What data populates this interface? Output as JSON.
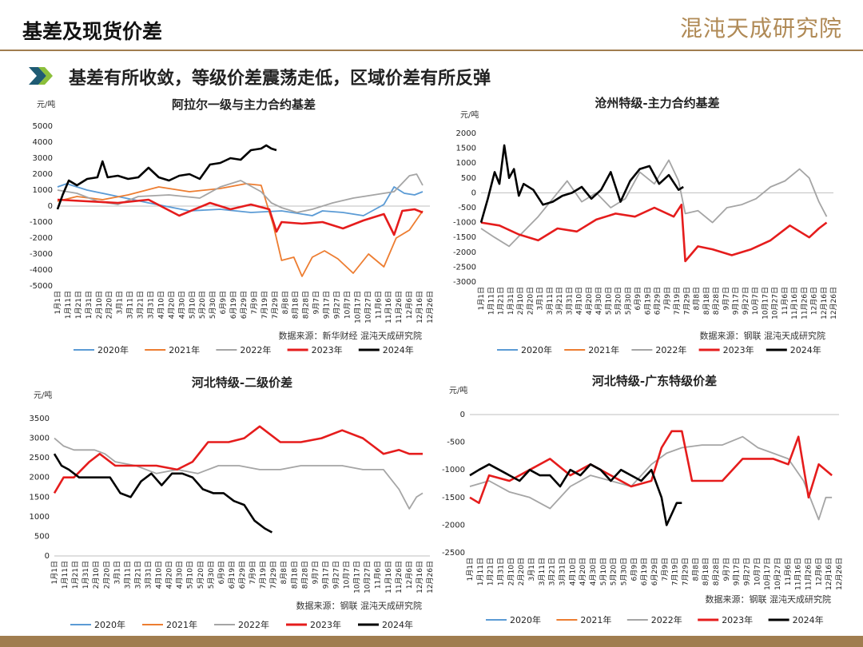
{
  "header": {
    "title": "基差及现货价差",
    "brand": "混沌天成研究院"
  },
  "subtitle": "基差有所收敛，等级价差震荡走低，区域价差有所反弹",
  "colors": {
    "s2020": "#5b9bd5",
    "s2021": "#ed7d31",
    "s2022": "#a5a5a5",
    "s2023": "#e51c1c",
    "s2024": "#000000",
    "accent": "#a07d4f"
  },
  "chart_data": [
    {
      "type": "line",
      "title": "阿拉尔一级与主力合约基差",
      "unit": "元/吨",
      "ylim": [
        -5000,
        5000
      ],
      "yticks": [
        -5000,
        -4000,
        -3000,
        -2000,
        -1000,
        0,
        1000,
        2000,
        3000,
        4000,
        5000
      ],
      "source": "数据来源：新华财经  混沌天成研究院",
      "x_ticks": [
        "1月1日",
        "1月11日",
        "1月21日",
        "1月31日",
        "2月10日",
        "2月20日",
        "3月1日",
        "3月11日",
        "3月21日",
        "3月31日",
        "4月10日",
        "4月20日",
        "4月30日",
        "5月10日",
        "5月20日",
        "5月30日",
        "6月9日",
        "6月19日",
        "6月29日",
        "7月9日",
        "7月19日",
        "7月29日",
        "8月8日",
        "8月18日",
        "8月28日",
        "9月7日",
        "9月17日",
        "9月27日",
        "10月7日",
        "10月17日",
        "10月27日",
        "11月6日",
        "11月16日",
        "11月26日",
        "12月6日",
        "12月16日",
        "12月26日"
      ],
      "legend": [
        "2020年",
        "2021年",
        "2022年",
        "2023年",
        "2024年"
      ],
      "series": [
        {
          "name": "2020年",
          "color_key": "s2020",
          "x": [
            1,
            10,
            30,
            60,
            90,
            130,
            160,
            190,
            220,
            250,
            260,
            280,
            300,
            320,
            330,
            340,
            350,
            358
          ],
          "y": [
            1200,
            1400,
            1000,
            600,
            200,
            -300,
            -200,
            -400,
            -300,
            -600,
            -300,
            -400,
            -600,
            100,
            1200,
            800,
            700,
            900
          ]
        },
        {
          "name": "2021年",
          "color_key": "s2021",
          "x": [
            1,
            20,
            45,
            70,
            100,
            130,
            160,
            185,
            200,
            212,
            220,
            232,
            240,
            250,
            262,
            275,
            290,
            305,
            320,
            332,
            345,
            358
          ],
          "y": [
            300,
            600,
            400,
            700,
            1200,
            900,
            1100,
            1400,
            1300,
            -1200,
            -3400,
            -3200,
            -4400,
            -3200,
            -2800,
            -3300,
            -4200,
            -3000,
            -3800,
            -2000,
            -1500,
            -300
          ]
        },
        {
          "name": "2022年",
          "color_key": "s2022",
          "x": [
            1,
            20,
            40,
            60,
            80,
            110,
            140,
            160,
            180,
            200,
            210,
            220,
            235,
            250,
            270,
            290,
            310,
            330,
            345,
            352,
            358
          ],
          "y": [
            1000,
            800,
            300,
            100,
            600,
            700,
            500,
            1200,
            1600,
            900,
            200,
            -100,
            -400,
            -200,
            200,
            500,
            700,
            900,
            1900,
            2000,
            1300
          ]
        },
        {
          "name": "2023年",
          "color_key": "s2023",
          "x": [
            1,
            30,
            60,
            90,
            120,
            150,
            170,
            190,
            208,
            215,
            220,
            240,
            260,
            280,
            300,
            320,
            330,
            338,
            350,
            358
          ],
          "y": [
            400,
            300,
            200,
            400,
            -600,
            200,
            -200,
            100,
            -200,
            -1600,
            -1000,
            -1100,
            -1000,
            -1400,
            -900,
            -500,
            -1800,
            -300,
            -200,
            -400
          ]
        },
        {
          "name": "2024年",
          "color_key": "s2024",
          "x": [
            1,
            6,
            12,
            20,
            30,
            40,
            45,
            50,
            60,
            70,
            80,
            90,
            100,
            110,
            120,
            130,
            140,
            150,
            160,
            170,
            180,
            190,
            200,
            205,
            210,
            215
          ],
          "y": [
            -200,
            700,
            1600,
            1300,
            1700,
            1800,
            2800,
            1800,
            1900,
            1700,
            1800,
            2400,
            1800,
            1600,
            1900,
            2000,
            1700,
            2600,
            2700,
            3000,
            2900,
            3500,
            3600,
            3800,
            3600,
            3500
          ]
        }
      ]
    },
    {
      "type": "line",
      "title": "沧州特级-主力合约基差",
      "unit": "元/吨",
      "ylim": [
        -3000,
        2000
      ],
      "yticks": [
        -3000,
        -2500,
        -2000,
        -1500,
        -1000,
        -500,
        0,
        500,
        1000,
        1500,
        2000
      ],
      "source": "数据来源：钢联  混沌天成研究院",
      "x_ticks": [
        "1月1日",
        "1月11日",
        "1月21日",
        "1月31日",
        "2月10日",
        "2月20日",
        "3月1日",
        "3月11日",
        "3月21日",
        "3月31日",
        "4月10日",
        "4月20日",
        "4月30日",
        "5月10日",
        "5月20日",
        "5月30日",
        "6月9日",
        "6月19日",
        "6月29日",
        "7月9日",
        "7月19日",
        "7月29日",
        "8月8日",
        "8月18日",
        "8月28日",
        "9月7日",
        "9月17日",
        "9月27日",
        "10月7日",
        "10月17日",
        "10月27日",
        "11月6日",
        "11月16日",
        "11月26日",
        "12月6日",
        "12月16日",
        "12月26日"
      ],
      "legend": [
        "2020年",
        "2021年",
        "2022年",
        "2023年",
        "2024年"
      ],
      "series": [
        {
          "name": "2020年",
          "color_key": "s2020",
          "x": [],
          "y": []
        },
        {
          "name": "2021年",
          "color_key": "s2021",
          "x": [],
          "y": []
        },
        {
          "name": "2022年",
          "color_key": "s2022",
          "x": [
            1,
            15,
            30,
            45,
            60,
            75,
            90,
            105,
            120,
            135,
            150,
            165,
            180,
            195,
            205,
            212,
            225,
            240,
            255,
            270,
            285,
            300,
            315,
            330,
            340,
            350,
            358
          ],
          "y": [
            -1200,
            -1500,
            -1800,
            -1300,
            -800,
            -200,
            400,
            -300,
            0,
            -500,
            -200,
            700,
            300,
            1100,
            400,
            -700,
            -600,
            -1000,
            -500,
            -400,
            -200,
            200,
            400,
            800,
            500,
            -300,
            -800
          ]
        },
        {
          "name": "2023年",
          "color_key": "s2023",
          "x": [
            1,
            20,
            40,
            60,
            80,
            100,
            120,
            140,
            160,
            180,
            200,
            208,
            212,
            225,
            240,
            260,
            280,
            300,
            320,
            340,
            350,
            358
          ],
          "y": [
            -1000,
            -1100,
            -1400,
            -1600,
            -1200,
            -1300,
            -900,
            -700,
            -800,
            -500,
            -800,
            -400,
            -2300,
            -1800,
            -1900,
            -2100,
            -1900,
            -1600,
            -1100,
            -1500,
            -1200,
            -1000
          ]
        },
        {
          "name": "2024年",
          "color_key": "s2024",
          "x": [
            1,
            8,
            15,
            20,
            25,
            30,
            35,
            40,
            45,
            55,
            65,
            75,
            85,
            95,
            105,
            115,
            125,
            135,
            145,
            155,
            165,
            175,
            185,
            195,
            205,
            210
          ],
          "y": [
            -1000,
            -200,
            700,
            300,
            1600,
            500,
            800,
            -100,
            300,
            100,
            -400,
            -300,
            -100,
            0,
            200,
            -200,
            100,
            700,
            -300,
            400,
            800,
            900,
            300,
            600,
            100,
            200
          ]
        }
      ]
    },
    {
      "type": "line",
      "title": "河北特级-二级价差",
      "unit": "元/吨",
      "ylim": [
        0,
        3500
      ],
      "yticks": [
        0,
        500,
        1000,
        1500,
        2000,
        2500,
        3000,
        3500
      ],
      "source": "数据来源：钢联  混沌天成研究院",
      "x_ticks": [
        "1月1日",
        "1月11日",
        "1月21日",
        "1月31日",
        "2月10日",
        "2月20日",
        "3月1日",
        "3月11日",
        "3月21日",
        "3月31日",
        "4月10日",
        "4月20日",
        "4月30日",
        "5月10日",
        "5月20日",
        "5月30日",
        "6月9日",
        "6月19日",
        "6月29日",
        "7月9日",
        "7月19日",
        "7月29日",
        "8月8日",
        "8月18日",
        "8月28日",
        "9月7日",
        "9月17日",
        "9月27日",
        "10月7日",
        "10月17日",
        "10月27日",
        "11月6日",
        "11月16日",
        "11月26日",
        "12月6日",
        "12月16日",
        "12月26日"
      ],
      "legend": [
        "2020年",
        "2021年",
        "2022年",
        "2023年",
        "2024年"
      ],
      "series": [
        {
          "name": "2020年",
          "color_key": "s2020",
          "x": [],
          "y": []
        },
        {
          "name": "2021年",
          "color_key": "s2021",
          "x": [],
          "y": []
        },
        {
          "name": "2022年",
          "color_key": "s2022",
          "x": [
            1,
            10,
            20,
            40,
            50,
            60,
            80,
            100,
            120,
            140,
            160,
            180,
            200,
            220,
            240,
            260,
            280,
            300,
            320,
            335,
            345,
            352,
            358
          ],
          "y": [
            3000,
            2800,
            2700,
            2700,
            2600,
            2400,
            2300,
            2100,
            2200,
            2100,
            2300,
            2300,
            2200,
            2200,
            2300,
            2300,
            2300,
            2200,
            2200,
            1700,
            1200,
            1500,
            1600
          ]
        },
        {
          "name": "2023年",
          "color_key": "s2023",
          "x": [
            1,
            10,
            20,
            35,
            45,
            60,
            80,
            100,
            120,
            135,
            150,
            170,
            185,
            200,
            220,
            240,
            260,
            280,
            300,
            310,
            320,
            335,
            345,
            358
          ],
          "y": [
            1600,
            2000,
            2000,
            2400,
            2600,
            2300,
            2300,
            2300,
            2200,
            2400,
            2900,
            2900,
            3000,
            3300,
            2900,
            2900,
            3000,
            3200,
            3000,
            2800,
            2600,
            2700,
            2600,
            2600
          ]
        },
        {
          "name": "2024年",
          "color_key": "s2024",
          "x": [
            1,
            8,
            15,
            25,
            35,
            45,
            55,
            65,
            75,
            85,
            95,
            105,
            115,
            125,
            135,
            145,
            155,
            165,
            175,
            185,
            195,
            205,
            212
          ],
          "y": [
            2600,
            2300,
            2200,
            2000,
            2000,
            2000,
            2000,
            1600,
            1500,
            1900,
            2100,
            1800,
            2100,
            2100,
            2000,
            1700,
            1600,
            1600,
            1400,
            1300,
            900,
            700,
            600
          ]
        }
      ]
    },
    {
      "type": "line",
      "title": "河北特级-广东特级价差",
      "unit": "元/吨",
      "ylim": [
        -2500,
        0
      ],
      "yticks": [
        -2500,
        -2000,
        -1500,
        -1000,
        -500,
        0
      ],
      "source": "数据来源：钢联  混沌天成研究院",
      "x_ticks": [
        "1月1日",
        "1月11日",
        "1月21日",
        "1月31日",
        "2月10日",
        "2月20日",
        "3月1日",
        "3月11日",
        "3月21日",
        "3月31日",
        "4月10日",
        "4月20日",
        "4月30日",
        "5月10日",
        "5月20日",
        "5月30日",
        "6月9日",
        "6月19日",
        "6月29日",
        "7月9日",
        "7月19日",
        "7月29日",
        "8月8日",
        "8月18日",
        "8月28日",
        "9月7日",
        "9月17日",
        "9月27日",
        "10月7日",
        "10月17日",
        "10月27日",
        "11月6日",
        "11月16日",
        "11月26日",
        "12月6日",
        "12月16日",
        "12月26日"
      ],
      "legend": [
        "2020年",
        "2021年",
        "2022年",
        "2023年",
        "2024年"
      ],
      "series": [
        {
          "name": "2020年",
          "color_key": "s2020",
          "x": [],
          "y": []
        },
        {
          "name": "2021年",
          "color_key": "s2021",
          "x": [],
          "y": []
        },
        {
          "name": "2022年",
          "color_key": "s2022",
          "x": [
            1,
            20,
            40,
            60,
            80,
            100,
            120,
            140,
            160,
            180,
            195,
            210,
            230,
            250,
            270,
            285,
            300,
            315,
            330,
            345,
            352,
            358
          ],
          "y": [
            -1300,
            -1200,
            -1400,
            -1500,
            -1700,
            -1300,
            -1100,
            -1200,
            -1300,
            -900,
            -700,
            -600,
            -550,
            -550,
            -400,
            -600,
            -700,
            -800,
            -1200,
            -1900,
            -1500,
            -1500
          ]
        },
        {
          "name": "2023年",
          "color_key": "s2023",
          "x": [
            1,
            10,
            20,
            40,
            60,
            80,
            100,
            120,
            140,
            160,
            180,
            190,
            200,
            210,
            220,
            230,
            250,
            270,
            290,
            300,
            315,
            325,
            335,
            345,
            358
          ],
          "y": [
            -1500,
            -1600,
            -1100,
            -1200,
            -1000,
            -800,
            -1100,
            -900,
            -1100,
            -1300,
            -1200,
            -600,
            -300,
            -300,
            -1200,
            -1200,
            -1200,
            -800,
            -800,
            -800,
            -900,
            -400,
            -1500,
            -900,
            -1100
          ]
        },
        {
          "name": "2024年",
          "color_key": "s2024",
          "x": [
            1,
            10,
            20,
            30,
            40,
            50,
            60,
            70,
            80,
            90,
            100,
            110,
            120,
            130,
            140,
            150,
            160,
            170,
            180,
            190,
            195,
            200,
            205,
            210
          ],
          "y": [
            -1100,
            -1000,
            -900,
            -1000,
            -1100,
            -1200,
            -1000,
            -1100,
            -1100,
            -1300,
            -1000,
            -1100,
            -900,
            -1000,
            -1200,
            -1000,
            -1100,
            -1200,
            -1000,
            -1500,
            -2000,
            -1800,
            -1600,
            -1600
          ]
        }
      ]
    }
  ]
}
